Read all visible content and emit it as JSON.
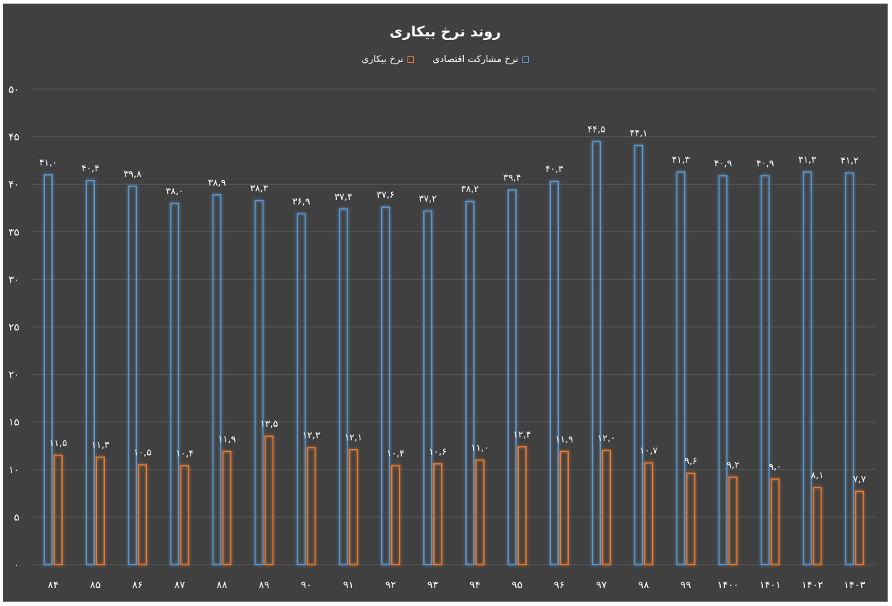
{
  "chart_data": {
    "type": "bar",
    "title": "روند نرخ بیکاری",
    "categories": [
      "۸۴",
      "۸۵",
      "۸۶",
      "۸۷",
      "۸۸",
      "۸۹",
      "۹۰",
      "۹۱",
      "۹۲",
      "۹۳",
      "۹۴",
      "۹۵",
      "۹۶",
      "۹۷",
      "۹۸",
      "۹۹",
      "۱۴۰۰",
      "۱۴۰۱",
      "۱۴۰۲",
      "۱۴۰۳"
    ],
    "series": [
      {
        "name": "نرخ مشارکت اقتصادی",
        "color": "#5b9bd5",
        "values": [
          41.0,
          40.4,
          39.8,
          38.0,
          38.9,
          38.3,
          36.9,
          37.4,
          37.6,
          37.2,
          38.2,
          39.4,
          40.3,
          44.5,
          44.1,
          41.3,
          40.9,
          40.9,
          41.3,
          41.2
        ],
        "labels": [
          "۴۱,۰",
          "۴۰,۴",
          "۳۹,۸",
          "۳۸,۰",
          "۳۸,۹",
          "۳۸,۳",
          "۳۶,۹",
          "۳۷,۴",
          "۳۷,۶",
          "۳۷,۲",
          "۳۸,۲",
          "۳۹,۴",
          "۴۰,۳",
          "۴۴,۵",
          "۴۴,۱",
          "۴۱,۳",
          "۴۰,۹",
          "۴۰,۹",
          "۴۱,۳",
          "۴۱,۲"
        ]
      },
      {
        "name": "نرخ بیکاری",
        "color": "#ed7d31",
        "values": [
          11.5,
          11.3,
          10.5,
          10.4,
          11.9,
          13.5,
          12.3,
          12.1,
          10.4,
          10.6,
          11.0,
          12.4,
          11.9,
          12.0,
          10.7,
          9.6,
          9.2,
          9.0,
          8.1,
          7.7
        ],
        "labels": [
          "۱۱,۵",
          "۱۱,۳",
          "۱۰,۵",
          "۱۰,۴",
          "۱۱,۹",
          "۱۳,۵",
          "۱۲,۳",
          "۱۲,۱",
          "۱۰,۴",
          "۱۰,۶",
          "۱۱,۰",
          "۱۲,۴",
          "۱۱,۹",
          "۱۲,۰",
          "۱۰,۷",
          "۹,۶",
          "۹,۲",
          "۹,۰",
          "۸,۱",
          "۷,۷"
        ]
      }
    ],
    "ylim": [
      0,
      50
    ],
    "yticks": [
      0,
      5,
      10,
      15,
      20,
      25,
      30,
      35,
      40,
      45,
      50
    ],
    "ytick_labels": [
      "۰",
      "۵",
      "۱۰",
      "۱۵",
      "۲۰",
      "۲۵",
      "۳۰",
      "۳۵",
      "۴۰",
      "۴۵",
      "۵۰"
    ],
    "grid": true,
    "legend_position": "top-center"
  }
}
